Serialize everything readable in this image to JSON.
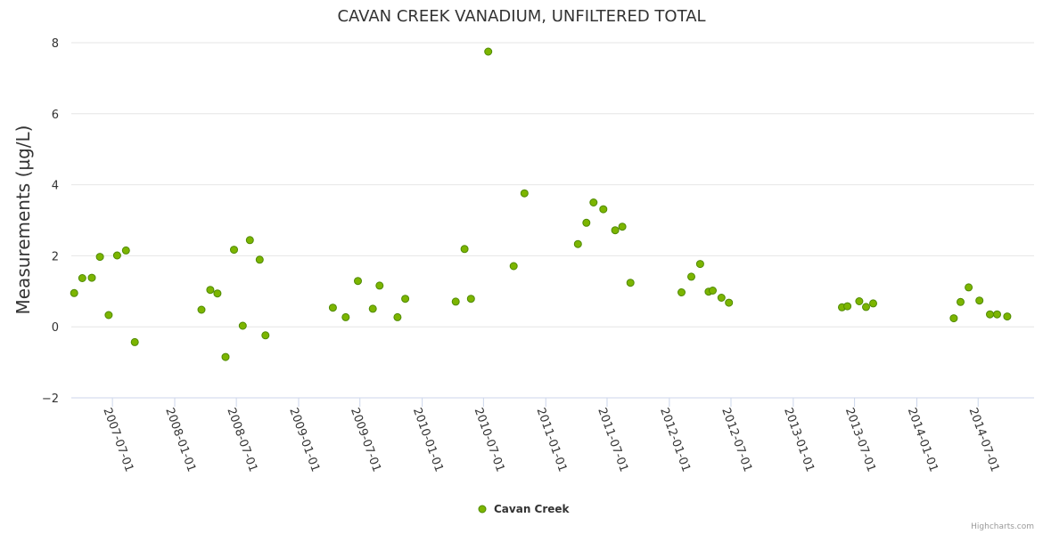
{
  "credits": "Highcharts.com",
  "chart_data": {
    "type": "scatter",
    "title": "CAVAN CREEK VANADIUM, UNFILTERED TOTAL",
    "ylabel": "Measurements (µg/L)",
    "xlabel": "",
    "ylim": [
      -2,
      8
    ],
    "yticks": [
      -2,
      0,
      2,
      4,
      6,
      8
    ],
    "xlim": [
      "2007-03-01",
      "2014-12-01"
    ],
    "xticks": [
      "2007-07-01",
      "2008-01-01",
      "2008-07-01",
      "2009-01-01",
      "2009-07-01",
      "2010-01-01",
      "2010-07-01",
      "2011-01-01",
      "2011-07-01",
      "2012-01-01",
      "2012-07-01",
      "2013-01-01",
      "2013-07-01",
      "2014-01-01",
      "2014-07-01"
    ],
    "grid": "horizontal",
    "legend_position": "bottom-center",
    "colors": {
      "marker_fill": "#7cb500",
      "marker_stroke": "#4f8a00",
      "grid": "#e6e6e6",
      "axis": "#ccd6eb"
    },
    "series": [
      {
        "name": "Cavan Creek",
        "points": [
          {
            "x": "2007-03-10",
            "y": 0.95
          },
          {
            "x": "2007-04-03",
            "y": 1.37
          },
          {
            "x": "2007-05-01",
            "y": 1.38
          },
          {
            "x": "2007-05-25",
            "y": 1.97
          },
          {
            "x": "2007-06-20",
            "y": 0.33
          },
          {
            "x": "2007-07-15",
            "y": 2.01
          },
          {
            "x": "2007-08-10",
            "y": 2.15
          },
          {
            "x": "2007-09-05",
            "y": -0.43
          },
          {
            "x": "2008-03-20",
            "y": 0.48
          },
          {
            "x": "2008-04-15",
            "y": 1.04
          },
          {
            "x": "2008-05-06",
            "y": 0.94
          },
          {
            "x": "2008-05-30",
            "y": -0.85
          },
          {
            "x": "2008-06-24",
            "y": 2.17
          },
          {
            "x": "2008-07-20",
            "y": 0.03
          },
          {
            "x": "2008-08-10",
            "y": 2.44
          },
          {
            "x": "2008-09-08",
            "y": 1.89
          },
          {
            "x": "2008-09-25",
            "y": -0.24
          },
          {
            "x": "2009-04-12",
            "y": 0.54
          },
          {
            "x": "2009-05-20",
            "y": 0.27
          },
          {
            "x": "2009-06-25",
            "y": 1.29
          },
          {
            "x": "2009-08-08",
            "y": 0.51
          },
          {
            "x": "2009-08-28",
            "y": 1.16
          },
          {
            "x": "2009-10-20",
            "y": 0.27
          },
          {
            "x": "2009-11-12",
            "y": 0.79
          },
          {
            "x": "2010-04-10",
            "y": 0.71
          },
          {
            "x": "2010-05-06",
            "y": 2.19
          },
          {
            "x": "2010-05-25",
            "y": 0.79
          },
          {
            "x": "2010-07-15",
            "y": 7.75
          },
          {
            "x": "2010-09-28",
            "y": 1.71
          },
          {
            "x": "2010-10-30",
            "y": 3.76
          },
          {
            "x": "2011-04-06",
            "y": 2.33
          },
          {
            "x": "2011-05-01",
            "y": 2.93
          },
          {
            "x": "2011-05-22",
            "y": 3.5
          },
          {
            "x": "2011-06-20",
            "y": 3.31
          },
          {
            "x": "2011-07-25",
            "y": 2.72
          },
          {
            "x": "2011-08-15",
            "y": 2.82
          },
          {
            "x": "2011-09-08",
            "y": 1.24
          },
          {
            "x": "2012-02-06",
            "y": 0.97
          },
          {
            "x": "2012-03-06",
            "y": 1.41
          },
          {
            "x": "2012-04-01",
            "y": 1.77
          },
          {
            "x": "2012-04-26",
            "y": 0.99
          },
          {
            "x": "2012-05-08",
            "y": 1.02
          },
          {
            "x": "2012-06-03",
            "y": 0.82
          },
          {
            "x": "2012-06-25",
            "y": 0.68
          },
          {
            "x": "2013-05-25",
            "y": 0.55
          },
          {
            "x": "2013-06-10",
            "y": 0.58
          },
          {
            "x": "2013-07-15",
            "y": 0.72
          },
          {
            "x": "2013-08-04",
            "y": 0.56
          },
          {
            "x": "2013-08-25",
            "y": 0.66
          },
          {
            "x": "2014-04-20",
            "y": 0.24
          },
          {
            "x": "2014-05-10",
            "y": 0.7
          },
          {
            "x": "2014-06-03",
            "y": 1.11
          },
          {
            "x": "2014-07-05",
            "y": 0.74
          },
          {
            "x": "2014-08-05",
            "y": 0.35
          },
          {
            "x": "2014-08-26",
            "y": 0.35
          },
          {
            "x": "2014-09-25",
            "y": 0.29
          }
        ]
      }
    ]
  }
}
